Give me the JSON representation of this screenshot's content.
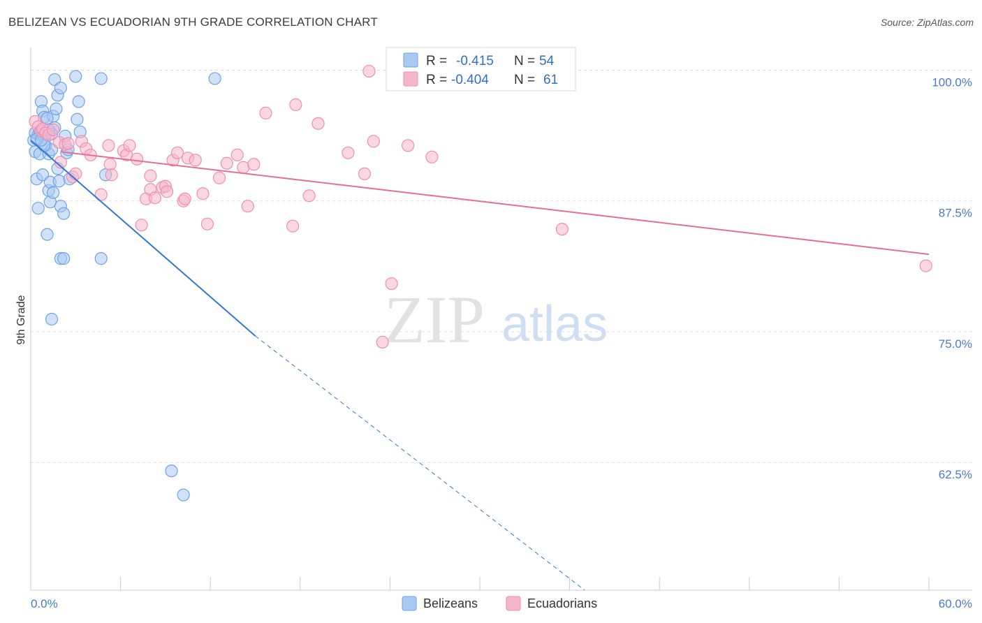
{
  "header": {
    "title": "BELIZEAN VS ECUADORIAN 9TH GRADE CORRELATION CHART",
    "source": "Source: ZipAtlas.com"
  },
  "watermark": {
    "zip": "ZIP",
    "atlas": "atlas"
  },
  "legend_box": {
    "rows": [
      {
        "r_label": "R =",
        "r_value": "-0.415",
        "n_label": "N =",
        "n_value": "54",
        "color": "#a9c8f2"
      },
      {
        "r_label": "R =",
        "r_value": "-0.404",
        "n_label": "N =",
        "n_value": "61",
        "color": "#f6b6ca"
      }
    ]
  },
  "chart_data": {
    "type": "scatter",
    "title": "BELIZEAN VS ECUADORIAN 9TH GRADE CORRELATION CHART",
    "ylabel": "9th Grade",
    "xlabel": "",
    "xlim": [
      0,
      60
    ],
    "ylim": [
      50.3,
      102.7
    ],
    "x_tick_labels": [
      {
        "value": 0,
        "label": "0.0%"
      },
      {
        "value": 60,
        "label": "60.0%"
      }
    ],
    "y_tick_labels": [
      {
        "value": 100,
        "label": "100.0%"
      },
      {
        "value": 87.5,
        "label": "87.5%"
      },
      {
        "value": 75,
        "label": "75.0%"
      },
      {
        "value": 62.5,
        "label": "62.5%"
      }
    ],
    "x_minor_ticks": [
      0,
      6,
      12,
      18,
      24,
      30,
      36,
      42,
      48,
      54,
      60
    ],
    "grid": true,
    "legend_position": "bottom-center",
    "series": [
      {
        "name": "Belizeans",
        "color": "#6fa3e6",
        "fill": "#a9c8f2",
        "trend_color": "#2f78d6",
        "trend": {
          "x0": 0,
          "y0": 93.3,
          "x1": 15.0,
          "y1": 74.6,
          "dashed_to_x": 37.0,
          "dashed_to_y": 50.3
        },
        "points": [
          [
            0.2,
            93.3
          ],
          [
            0.3,
            92.2
          ],
          [
            0.4,
            89.6
          ],
          [
            0.5,
            93.9
          ],
          [
            0.5,
            86.8
          ],
          [
            0.6,
            92.0
          ],
          [
            0.7,
            97.0
          ],
          [
            0.8,
            90.0
          ],
          [
            0.8,
            96.1
          ],
          [
            0.9,
            95.5
          ],
          [
            1.0,
            93.8
          ],
          [
            1.0,
            92.8
          ],
          [
            1.1,
            84.3
          ],
          [
            1.2,
            92.0
          ],
          [
            1.2,
            88.5
          ],
          [
            1.3,
            89.3
          ],
          [
            1.3,
            87.4
          ],
          [
            1.4,
            76.2
          ],
          [
            1.4,
            92.4
          ],
          [
            1.5,
            95.6
          ],
          [
            1.5,
            88.3
          ],
          [
            1.6,
            94.5
          ],
          [
            1.6,
            99.1
          ],
          [
            1.7,
            96.3
          ],
          [
            1.8,
            90.6
          ],
          [
            1.8,
            97.6
          ],
          [
            1.9,
            89.4
          ],
          [
            2.0,
            98.3
          ],
          [
            2.0,
            87.0
          ],
          [
            2.0,
            82.0
          ],
          [
            2.2,
            82.0
          ],
          [
            2.2,
            86.3
          ],
          [
            2.3,
            93.7
          ],
          [
            2.4,
            92.1
          ],
          [
            2.5,
            92.4
          ],
          [
            2.6,
            89.6
          ],
          [
            3.1,
            95.3
          ],
          [
            3.0,
            99.4
          ],
          [
            3.2,
            97.0
          ],
          [
            3.3,
            94.1
          ],
          [
            4.7,
            99.2
          ],
          [
            4.7,
            82.0
          ],
          [
            5.0,
            90.0
          ],
          [
            9.4,
            61.7
          ],
          [
            10.2,
            59.4
          ],
          [
            12.3,
            99.2
          ],
          [
            0.3,
            94.0
          ],
          [
            0.6,
            94.1
          ],
          [
            0.9,
            92.8
          ],
          [
            1.1,
            95.4
          ],
          [
            1.4,
            93.9
          ],
          [
            0.4,
            93.4
          ],
          [
            0.7,
            93.3
          ],
          [
            1.2,
            94.3
          ]
        ]
      },
      {
        "name": "Ecuadorians",
        "color": "#ef8fb0",
        "fill": "#f6b6ca",
        "trend_color": "#e76d97",
        "trend": {
          "x0": 2.0,
          "y0": 92.2,
          "x1": 60.0,
          "y1": 82.4
        },
        "points": [
          [
            0.3,
            95.1
          ],
          [
            0.5,
            94.6
          ],
          [
            0.7,
            94.2
          ],
          [
            0.8,
            94.4
          ],
          [
            1.0,
            94.0
          ],
          [
            1.2,
            93.8
          ],
          [
            1.5,
            94.3
          ],
          [
            1.9,
            93.1
          ],
          [
            2.0,
            91.2
          ],
          [
            2.3,
            92.9
          ],
          [
            2.5,
            93.0
          ],
          [
            2.8,
            89.8
          ],
          [
            3.0,
            90.1
          ],
          [
            3.4,
            93.2
          ],
          [
            3.7,
            92.5
          ],
          [
            4.0,
            91.9
          ],
          [
            4.7,
            88.1
          ],
          [
            5.2,
            92.8
          ],
          [
            5.3,
            91.0
          ],
          [
            5.4,
            90.0
          ],
          [
            6.2,
            92.3
          ],
          [
            6.4,
            91.9
          ],
          [
            6.6,
            92.8
          ],
          [
            7.1,
            91.5
          ],
          [
            7.4,
            85.2
          ],
          [
            7.7,
            87.7
          ],
          [
            8.0,
            88.6
          ],
          [
            8.0,
            89.9
          ],
          [
            8.3,
            87.8
          ],
          [
            8.8,
            88.8
          ],
          [
            9.0,
            88.9
          ],
          [
            9.1,
            88.4
          ],
          [
            9.5,
            91.4
          ],
          [
            9.8,
            92.1
          ],
          [
            10.2,
            87.5
          ],
          [
            10.3,
            87.7
          ],
          [
            10.5,
            91.6
          ],
          [
            11.0,
            91.4
          ],
          [
            11.5,
            88.2
          ],
          [
            11.8,
            85.3
          ],
          [
            12.6,
            89.7
          ],
          [
            13.1,
            91.1
          ],
          [
            13.8,
            91.9
          ],
          [
            14.2,
            90.7
          ],
          [
            14.5,
            87.0
          ],
          [
            14.9,
            91.0
          ],
          [
            15.7,
            95.9
          ],
          [
            17.5,
            85.1
          ],
          [
            17.7,
            96.7
          ],
          [
            18.6,
            88.0
          ],
          [
            19.2,
            94.9
          ],
          [
            21.2,
            92.1
          ],
          [
            22.3,
            90.1
          ],
          [
            22.6,
            99.9
          ],
          [
            22.9,
            93.2
          ],
          [
            23.5,
            74.0
          ],
          [
            24.1,
            79.6
          ],
          [
            25.2,
            92.8
          ],
          [
            26.8,
            91.7
          ],
          [
            35.5,
            84.8
          ],
          [
            59.8,
            81.3
          ]
        ]
      }
    ]
  },
  "bottom_legend": {
    "items": [
      {
        "label": "Belizeans",
        "color": "#a9c8f2",
        "stroke": "#6fa3e6"
      },
      {
        "label": "Ecuadorians",
        "color": "#f6b6ca",
        "stroke": "#ef8fb0"
      }
    ]
  }
}
